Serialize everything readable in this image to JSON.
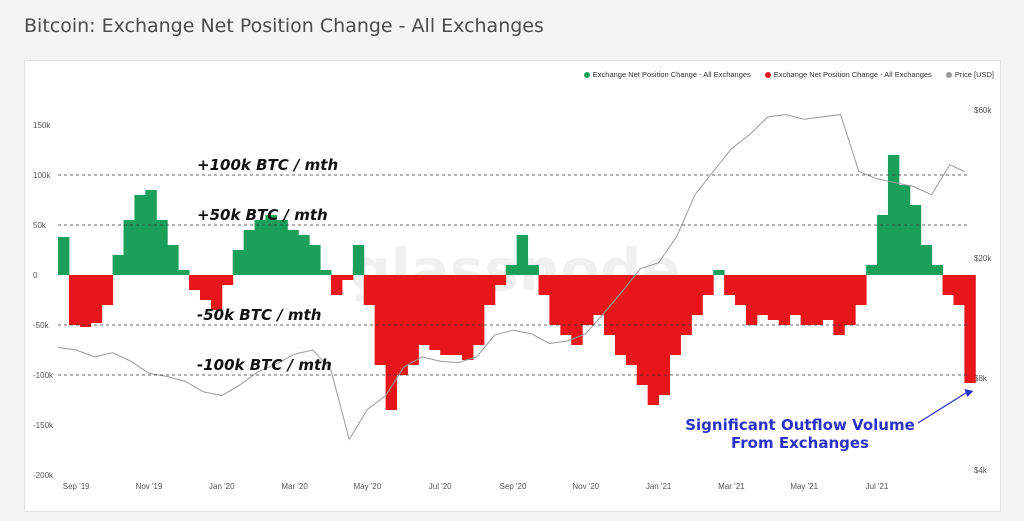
{
  "title": "Bitcoin: Exchange Net Position Change - All Exchanges",
  "watermark": "glassnode",
  "colors": {
    "green": "#1aa05a",
    "red": "#e8161a",
    "price": "#9a9a9a",
    "annotation": "#2b32c8"
  },
  "legend": [
    {
      "label": "Exchange Net Position Change - All Exchanges",
      "color": "#1aa05a"
    },
    {
      "label": "Exchange Net Position Change - All Exchanges",
      "color": "#e8161a"
    },
    {
      "label": "Price [USD]",
      "color": "#9a9a9a"
    }
  ],
  "chart_data": {
    "type": "area",
    "title": "Bitcoin: Exchange Net Position Change - All Exchanges",
    "y_left": {
      "ticks": [
        150000,
        100000,
        50000,
        0,
        -50000,
        -100000,
        -150000,
        -200000
      ],
      "tick_labels": [
        "150k",
        "100k",
        "50k",
        "0",
        "-50k",
        "-100k",
        "-150k",
        "-200k"
      ],
      "range": [
        -200000,
        150000
      ]
    },
    "y_right": {
      "ticks": [
        60000,
        20000,
        8000,
        4000
      ],
      "tick_labels": [
        "$60k",
        "$20k",
        "$8k",
        "$4k"
      ],
      "scale": "log"
    },
    "x_axis": {
      "range_months": [
        0,
        25
      ],
      "tick_months": [
        0.5,
        2.5,
        4.5,
        6.5,
        8.5,
        10.5,
        12.5,
        14.5,
        16.5,
        18.5,
        20.5,
        22.5
      ],
      "tick_labels": [
        "Sep '19",
        "Nov '19",
        "Jan '20",
        "Mar '20",
        "May '20",
        "Jul '20",
        "Sep '20",
        "Nov '20",
        "Jan '21",
        "Mar '21",
        "May '21",
        "Jul '21"
      ]
    },
    "reference_lines": [
      {
        "value": 100000,
        "label": "+100k BTC / mth"
      },
      {
        "value": 50000,
        "label": "+50k BTC / mth"
      },
      {
        "value": -50000,
        "label": "-50k BTC / mth"
      },
      {
        "value": -100000,
        "label": "-100k BTC / mth"
      }
    ],
    "series": [
      {
        "name": "Exchange Net Position Change - All Exchanges",
        "unit": "BTC",
        "x": [
          0,
          0.3,
          0.6,
          0.9,
          1.2,
          1.5,
          1.8,
          2.1,
          2.4,
          2.7,
          3.0,
          3.3,
          3.6,
          3.9,
          4.2,
          4.5,
          4.8,
          5.1,
          5.4,
          5.7,
          6.0,
          6.3,
          6.6,
          6.9,
          7.2,
          7.5,
          7.8,
          8.1,
          8.4,
          8.7,
          9.0,
          9.3,
          9.6,
          9.9,
          10.2,
          10.5,
          10.8,
          11.1,
          11.4,
          11.7,
          12.0,
          12.3,
          12.6,
          12.9,
          13.2,
          13.5,
          13.8,
          14.1,
          14.4,
          14.7,
          15.0,
          15.3,
          15.6,
          15.9,
          16.2,
          16.5,
          16.8,
          17.1,
          17.4,
          17.7,
          18.0,
          18.3,
          18.6,
          18.9,
          19.2,
          19.5,
          19.8,
          20.1,
          20.4,
          20.7,
          21.0,
          21.3,
          21.6,
          21.9,
          22.2,
          22.5,
          22.8,
          23.1,
          23.4,
          23.7,
          24.0,
          24.3,
          24.6,
          24.9
        ],
        "values": [
          38000,
          -50000,
          -52000,
          -48000,
          -30000,
          20000,
          55000,
          80000,
          85000,
          55000,
          30000,
          5000,
          -15000,
          -25000,
          -35000,
          -10000,
          25000,
          45000,
          55000,
          60000,
          55000,
          45000,
          40000,
          30000,
          5000,
          -20000,
          -5000,
          30000,
          -30000,
          -90000,
          -135000,
          -100000,
          -90000,
          -70000,
          -75000,
          -80000,
          -80000,
          -85000,
          -70000,
          -30000,
          -10000,
          10000,
          40000,
          10000,
          -20000,
          -50000,
          -60000,
          -70000,
          -50000,
          -40000,
          -60000,
          -80000,
          -90000,
          -110000,
          -130000,
          -120000,
          -80000,
          -60000,
          -40000,
          -20000,
          5000,
          -20000,
          -30000,
          -50000,
          -40000,
          -45000,
          -50000,
          -40000,
          -50000,
          -50000,
          -45000,
          -60000,
          -50000,
          -30000,
          10000,
          60000,
          120000,
          90000,
          70000,
          30000,
          10000,
          -20000,
          -30000,
          -108000
        ]
      },
      {
        "name": "Price [USD]",
        "unit": "USD",
        "x": [
          0,
          0.5,
          1,
          1.5,
          2,
          2.5,
          3,
          3.5,
          4,
          4.5,
          5,
          5.5,
          6,
          6.5,
          7,
          7.5,
          8,
          8.5,
          9,
          9.5,
          10,
          10.5,
          11,
          11.5,
          12,
          12.5,
          13,
          13.5,
          14,
          14.5,
          15,
          15.5,
          16,
          16.5,
          17,
          17.5,
          18,
          18.5,
          19,
          19.5,
          20,
          20.5,
          21,
          21.5,
          22,
          22.5,
          23,
          23.5,
          24,
          24.5,
          24.9
        ],
        "values": [
          10300,
          10100,
          9600,
          9900,
          9300,
          8500,
          8300,
          8000,
          7400,
          7200,
          7800,
          8600,
          9100,
          9800,
          10100,
          8700,
          5200,
          6500,
          7200,
          8900,
          9600,
          9300,
          9200,
          9600,
          11300,
          11700,
          11400,
          10600,
          10800,
          11400,
          13300,
          15600,
          18500,
          19300,
          23500,
          32000,
          38000,
          45000,
          50000,
          57000,
          58000,
          56000,
          57000,
          58000,
          38000,
          36000,
          35000,
          34000,
          32000,
          40000,
          38000
        ]
      }
    ],
    "annotation": {
      "text_lines": [
        "Significant Outflow Volume",
        "From Exchanges"
      ],
      "points_to_month": 24.9,
      "points_to_value": -108000
    }
  }
}
